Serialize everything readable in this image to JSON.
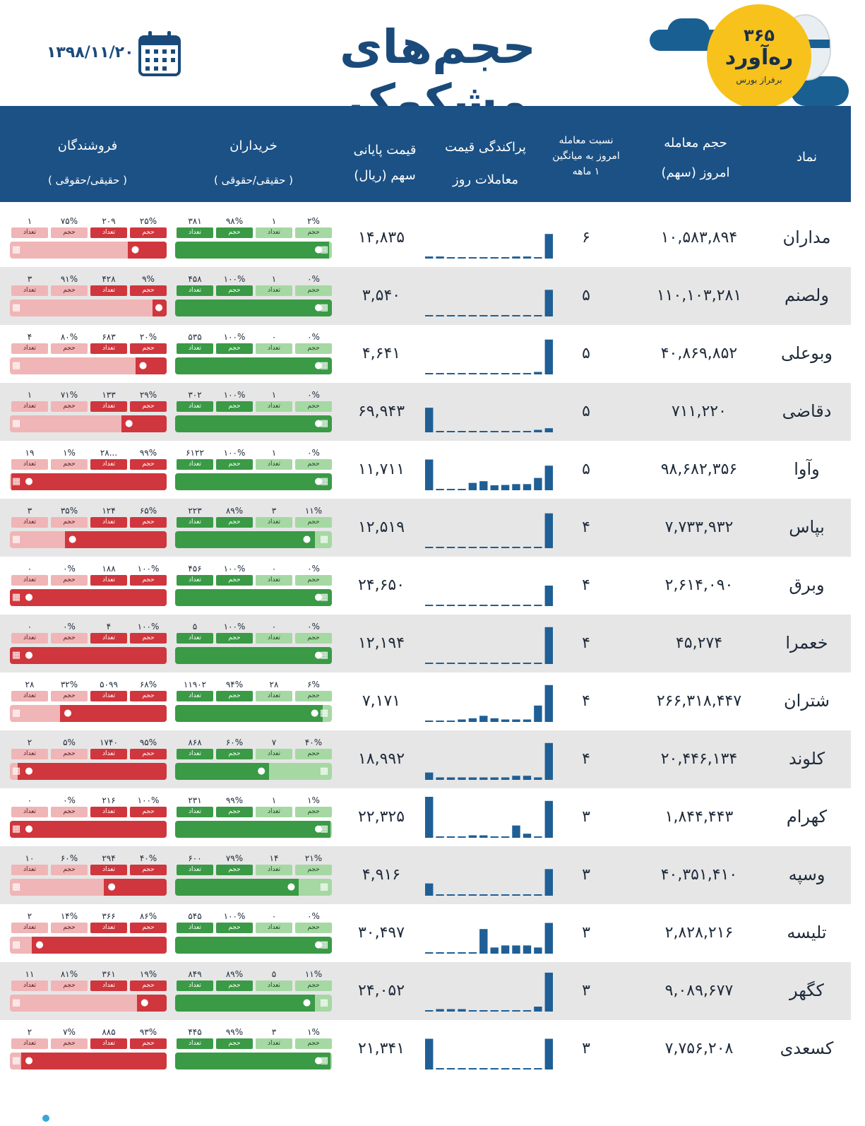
{
  "header": {
    "title": "حجم‌های مشکوک",
    "date": "۱۳۹۸/۱۱/۲۰",
    "logo_number": "۳۶۵",
    "logo_name": "ره‌آورد",
    "logo_tagline": "برفراز بورس"
  },
  "columns": {
    "symbol": "نماد",
    "volume_l1": "حجم معامله",
    "volume_l2": "امروز (سهم)",
    "ratio_l1": "نسبت معامله",
    "ratio_l2": "امروز به میانگین",
    "ratio_l3": "۱ ماهه",
    "dispersion_l1": "پراکندگی قیمت",
    "dispersion_l2": "معاملات روز",
    "price_l1": "قیمت پایانی",
    "price_l2": "سهم (ریال)",
    "buyers_l1": "خریداران",
    "buyers_l2": "( حقیقی/حقوقی )",
    "sellers_l1": "فروشندگان",
    "sellers_l2": "( حقیقی/حقوقی )",
    "tag_volume": "حجم",
    "tag_count": "تعداد"
  },
  "colors": {
    "header_bg": "#1b5185",
    "title": "#1a4a7a",
    "mini_bar": "#1f5f95",
    "buy_dark": "#3a9a46",
    "buy_light": "#a6d8a3",
    "sell_dark": "#d0363d",
    "sell_light": "#f0b5b6"
  },
  "icons": {
    "person": "person-icon",
    "building": "building-icon",
    "calendar": "calendar-icon"
  },
  "rows": [
    {
      "symbol": "مداران",
      "volume": "۱۰,۵۸۳,۸۹۴",
      "ratio": "۶",
      "price": "۱۴,۸۳۵",
      "buy": {
        "legal_vol": "۲%",
        "legal_cnt": "۱",
        "real_vol": "۹۸%",
        "real_cnt": "۳۸۱",
        "real_frac": 0.98
      },
      "sell": {
        "real_vol": "۲۵%",
        "real_cnt": "۲۰۹",
        "legal_vol": "۷۵%",
        "legal_cnt": "۱",
        "real_frac": 0.25
      },
      "dist": [
        0.05,
        0.05,
        0,
        0,
        0,
        0.02,
        0,
        0,
        0.05,
        0.05,
        0,
        0.6
      ]
    },
    {
      "symbol": "ولصنم",
      "volume": "۱۱۰,۱۰۳,۲۸۱",
      "ratio": "۵",
      "price": "۳,۵۴۰",
      "buy": {
        "legal_vol": "۰%",
        "legal_cnt": "۱",
        "real_vol": "۱۰۰%",
        "real_cnt": "۴۵۸",
        "real_frac": 1.0
      },
      "sell": {
        "real_vol": "۹%",
        "real_cnt": "۴۲۸",
        "legal_vol": "۹۱%",
        "legal_cnt": "۳",
        "real_frac": 0.09
      },
      "dist": [
        0.03,
        0.03,
        0.03,
        0.03,
        0.03,
        0.03,
        0.03,
        0.03,
        0.03,
        0.03,
        0.03,
        0.65
      ]
    },
    {
      "symbol": "وبوعلی",
      "volume": "۴۰,۸۶۹,۸۵۲",
      "ratio": "۵",
      "price": "۴,۶۴۱",
      "buy": {
        "legal_vol": "۰%",
        "legal_cnt": "۰",
        "real_vol": "۱۰۰%",
        "real_cnt": "۵۳۵",
        "real_frac": 1.0
      },
      "sell": {
        "real_vol": "۲۰%",
        "real_cnt": "۶۸۳",
        "legal_vol": "۸۰%",
        "legal_cnt": "۴",
        "real_frac": 0.2
      },
      "dist": [
        0.03,
        0.03,
        0.03,
        0.03,
        0.03,
        0.03,
        0.03,
        0.03,
        0.03,
        0.03,
        0.06,
        0.85
      ]
    },
    {
      "symbol": "دقاضی",
      "volume": "۷۱۱,۲۲۰",
      "ratio": "۵",
      "price": "۶۹,۹۴۳",
      "buy": {
        "legal_vol": "۰%",
        "legal_cnt": "۱",
        "real_vol": "۱۰۰%",
        "real_cnt": "۳۰۲",
        "real_frac": 1.0
      },
      "sell": {
        "real_vol": "۲۹%",
        "real_cnt": "۱۳۳",
        "legal_vol": "۷۱%",
        "legal_cnt": "۱",
        "real_frac": 0.29
      },
      "dist": [
        0.6,
        0,
        0.03,
        0.03,
        0.03,
        0.03,
        0.03,
        0.03,
        0.03,
        0.03,
        0.06,
        0.1
      ]
    },
    {
      "symbol": "وآوا",
      "volume": "۹۸,۶۸۲,۳۵۶",
      "ratio": "۵",
      "price": "۱۱,۷۱۱",
      "buy": {
        "legal_vol": "۰%",
        "legal_cnt": "۱",
        "real_vol": "۱۰۰%",
        "real_cnt": "۶۱۲۲",
        "real_frac": 1.0
      },
      "sell": {
        "real_vol": "۹۹%",
        "real_cnt": "۲۸...",
        "legal_vol": "۱%",
        "legal_cnt": "۱۹",
        "real_frac": 0.99
      },
      "dist": [
        0.75,
        0,
        0.03,
        0.03,
        0.18,
        0.22,
        0.12,
        0.13,
        0.15,
        0.15,
        0.3,
        0.6
      ]
    },
    {
      "symbol": "بپاس",
      "volume": "۷,۷۳۳,۹۳۲",
      "ratio": "۴",
      "price": "۱۲,۵۱۹",
      "buy": {
        "legal_vol": "۱۱%",
        "legal_cnt": "۳",
        "real_vol": "۸۹%",
        "real_cnt": "۲۲۳",
        "real_frac": 0.89
      },
      "sell": {
        "real_vol": "۶۵%",
        "real_cnt": "۱۲۴",
        "legal_vol": "۳۵%",
        "legal_cnt": "۳",
        "real_frac": 0.65
      },
      "dist": [
        0.03,
        0,
        0,
        0,
        0,
        0.03,
        0.03,
        0.03,
        0.03,
        0.03,
        0,
        0.85
      ]
    },
    {
      "symbol": "وبرق",
      "volume": "۲,۶۱۴,۰۹۰",
      "ratio": "۴",
      "price": "۲۴,۶۵۰",
      "buy": {
        "legal_vol": "۰%",
        "legal_cnt": "۰",
        "real_vol": "۱۰۰%",
        "real_cnt": "۴۵۶",
        "real_frac": 1.0
      },
      "sell": {
        "real_vol": "۱۰۰%",
        "real_cnt": "۱۸۸",
        "legal_vol": "۰%",
        "legal_cnt": "۰",
        "real_frac": 1.0
      },
      "dist": [
        0.03,
        0.03,
        0.03,
        0.03,
        0.03,
        0.03,
        0.03,
        0.03,
        0.03,
        0.03,
        0.03,
        0.5
      ]
    },
    {
      "symbol": "خعمرا",
      "volume": "۴۵,۲۷۴",
      "ratio": "۴",
      "price": "۱۲,۱۹۴",
      "buy": {
        "legal_vol": "۰%",
        "legal_cnt": "۰",
        "real_vol": "۱۰۰%",
        "real_cnt": "۵",
        "real_frac": 1.0
      },
      "sell": {
        "real_vol": "۱۰۰%",
        "real_cnt": "۴",
        "legal_vol": "۰%",
        "legal_cnt": "۰",
        "real_frac": 1.0
      },
      "dist": [
        0,
        0,
        0,
        0,
        0,
        0,
        0,
        0,
        0,
        0,
        0,
        0.9
      ]
    },
    {
      "symbol": "شتران",
      "volume": "۲۶۶,۳۱۸,۴۴۷",
      "ratio": "۴",
      "price": "۷,۱۷۱",
      "buy": {
        "legal_vol": "۶%",
        "legal_cnt": "۲۸",
        "real_vol": "۹۴%",
        "real_cnt": "۱۱۹۰۲",
        "real_frac": 0.94
      },
      "sell": {
        "real_vol": "۶۸%",
        "real_cnt": "۵۰۹۹",
        "legal_vol": "۳۲%",
        "legal_cnt": "۲۸",
        "real_frac": 0.68
      },
      "dist": [
        0.03,
        0.03,
        0.03,
        0.06,
        0.09,
        0.15,
        0.09,
        0.06,
        0.06,
        0.06,
        0.4,
        0.9
      ]
    },
    {
      "symbol": "کلوند",
      "volume": "۲۰,۴۴۶,۱۳۴",
      "ratio": "۴",
      "price": "۱۸,۹۹۲",
      "buy": {
        "legal_vol": "۴۰%",
        "legal_cnt": "۷",
        "real_vol": "۶۰%",
        "real_cnt": "۸۶۸",
        "real_frac": 0.6
      },
      "sell": {
        "real_vol": "۹۵%",
        "real_cnt": "۱۷۴۰",
        "legal_vol": "۵%",
        "legal_cnt": "۲",
        "real_frac": 0.95
      },
      "dist": [
        0.18,
        0.06,
        0.06,
        0.06,
        0.06,
        0.06,
        0.06,
        0.06,
        0.1,
        0.1,
        0.06,
        0.9
      ]
    },
    {
      "symbol": "کهرام",
      "volume": "۱,۸۴۴,۴۴۳",
      "ratio": "۳",
      "price": "۲۲,۳۲۵",
      "buy": {
        "legal_vol": "۱%",
        "legal_cnt": "۱",
        "real_vol": "۹۹%",
        "real_cnt": "۲۳۱",
        "real_frac": 0.99
      },
      "sell": {
        "real_vol": "۱۰۰%",
        "real_cnt": "۲۱۶",
        "legal_vol": "۰%",
        "legal_cnt": "۰",
        "real_frac": 1.0
      },
      "dist": [
        1.0,
        0,
        0,
        0.03,
        0.06,
        0.06,
        0.03,
        0,
        0.3,
        0.1,
        0,
        0.9
      ]
    },
    {
      "symbol": "وسپه",
      "volume": "۴۰,۳۵۱,۴۱۰",
      "ratio": "۳",
      "price": "۴,۹۱۶",
      "buy": {
        "legal_vol": "۲۱%",
        "legal_cnt": "۱۴",
        "real_vol": "۷۹%",
        "real_cnt": "۶۰۰",
        "real_frac": 0.79
      },
      "sell": {
        "real_vol": "۴۰%",
        "real_cnt": "۲۹۴",
        "legal_vol": "۶۰%",
        "legal_cnt": "۱۰",
        "real_frac": 0.4
      },
      "dist": [
        0.3,
        0.03,
        0.03,
        0.03,
        0.03,
        0.03,
        0.03,
        0.03,
        0.03,
        0.03,
        0.03,
        0.65
      ]
    },
    {
      "symbol": "تلیسه",
      "volume": "۲,۸۲۸,۲۱۶",
      "ratio": "۳",
      "price": "۳۰,۴۹۷",
      "buy": {
        "legal_vol": "۰%",
        "legal_cnt": "۰",
        "real_vol": "۱۰۰%",
        "real_cnt": "۵۴۵",
        "real_frac": 1.0
      },
      "sell": {
        "real_vol": "۸۶%",
        "real_cnt": "۳۶۶",
        "legal_vol": "۱۴%",
        "legal_cnt": "۲",
        "real_frac": 0.86
      },
      "dist": [
        0.03,
        0,
        0,
        0,
        0,
        0.6,
        0.15,
        0.2,
        0.2,
        0.2,
        0.15,
        0.75
      ]
    },
    {
      "symbol": "کگهر",
      "volume": "۹,۰۸۹,۶۷۷",
      "ratio": "۳",
      "price": "۲۴,۰۵۲",
      "buy": {
        "legal_vol": "۱۱%",
        "legal_cnt": "۵",
        "real_vol": "۸۹%",
        "real_cnt": "۸۴۹",
        "real_frac": 0.89
      },
      "sell": {
        "real_vol": "۱۹%",
        "real_cnt": "۳۶۱",
        "legal_vol": "۸۱%",
        "legal_cnt": "۱۱",
        "real_frac": 0.19
      },
      "dist": [
        0.03,
        0.06,
        0.06,
        0.06,
        0.03,
        0.03,
        0.03,
        0.03,
        0.03,
        0.03,
        0.12,
        0.95
      ]
    },
    {
      "symbol": "کسعدی",
      "volume": "۷,۷۵۶,۲۰۸",
      "ratio": "۳",
      "price": "۲۱,۳۴۱",
      "buy": {
        "legal_vol": "۱%",
        "legal_cnt": "۳",
        "real_vol": "۹۹%",
        "real_cnt": "۴۴۵",
        "real_frac": 0.99
      },
      "sell": {
        "real_vol": "۹۳%",
        "real_cnt": "۸۸۵",
        "legal_vol": "۷%",
        "legal_cnt": "۲",
        "real_frac": 0.93
      },
      "dist": [
        0.75,
        0,
        0.03,
        0.03,
        0.03,
        0.03,
        0.03,
        0.03,
        0.03,
        0.03,
        0.03,
        0.75
      ]
    }
  ]
}
